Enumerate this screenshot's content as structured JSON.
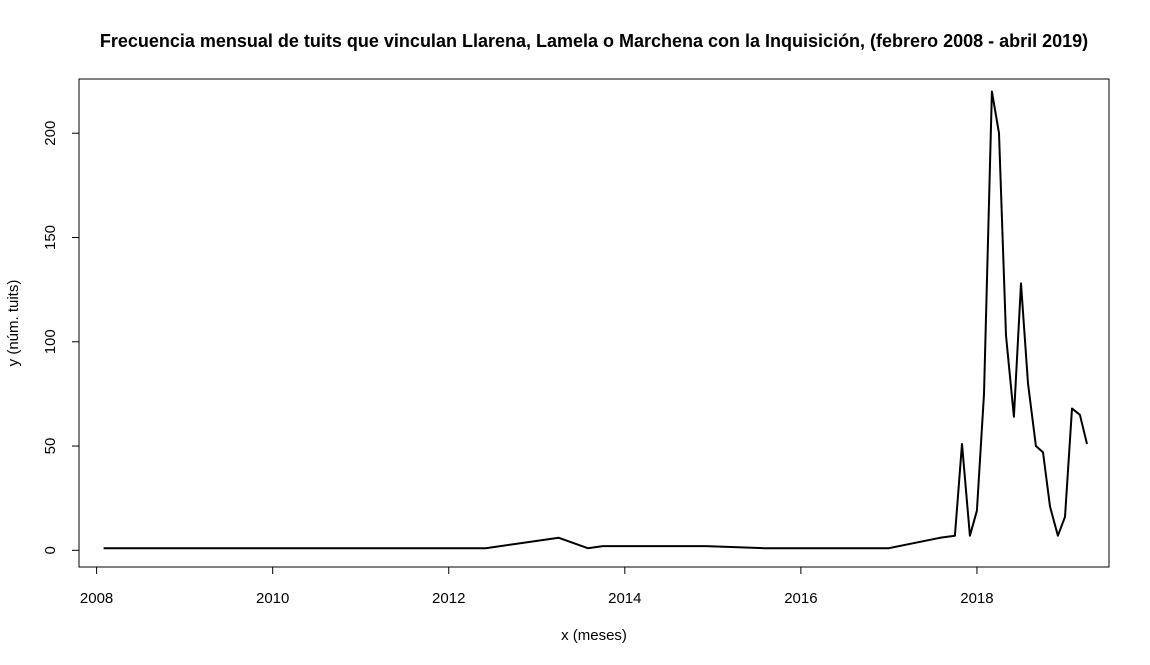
{
  "chart_data": {
    "type": "line",
    "title": "Frecuencia mensual de tuits que vinculan Llarena, Lamela o Marchena con la Inquisición, (febrero 2008 - abril 2019)",
    "xlabel": "x (meses)",
    "ylabel": "y (núm. tuits)",
    "xlim": [
      2007.8,
      2019.5
    ],
    "ylim": [
      -8,
      226
    ],
    "xticks": [
      2008,
      2010,
      2012,
      2014,
      2016,
      2018
    ],
    "xtick_labels": [
      "2008",
      "2010",
      "2012",
      "2014",
      "2016",
      "2018"
    ],
    "yticks": [
      0,
      50,
      100,
      150,
      200
    ],
    "ytick_labels": [
      "0",
      "50",
      "100",
      "150",
      "200"
    ],
    "grid": false,
    "line_color": "#000000",
    "series": [
      {
        "x": [
          2008.08,
          2012.42,
          2013.25,
          2013.58,
          2013.75,
          2014.92,
          2015.58,
          2017.0,
          2017.58,
          2017.75,
          2017.83,
          2017.92,
          2018.0,
          2018.08,
          2018.17,
          2018.25,
          2018.33,
          2018.42,
          2018.5,
          2018.58,
          2018.67,
          2018.75,
          2018.83,
          2018.92,
          2019.0,
          2019.08,
          2019.17,
          2019.25
        ],
        "y": [
          1,
          1,
          6,
          1,
          2,
          2,
          1,
          1,
          6,
          7,
          51,
          7,
          19,
          75,
          220,
          200,
          103,
          64,
          128,
          80,
          50,
          47,
          21,
          7,
          16,
          68,
          65,
          51
        ]
      }
    ]
  }
}
